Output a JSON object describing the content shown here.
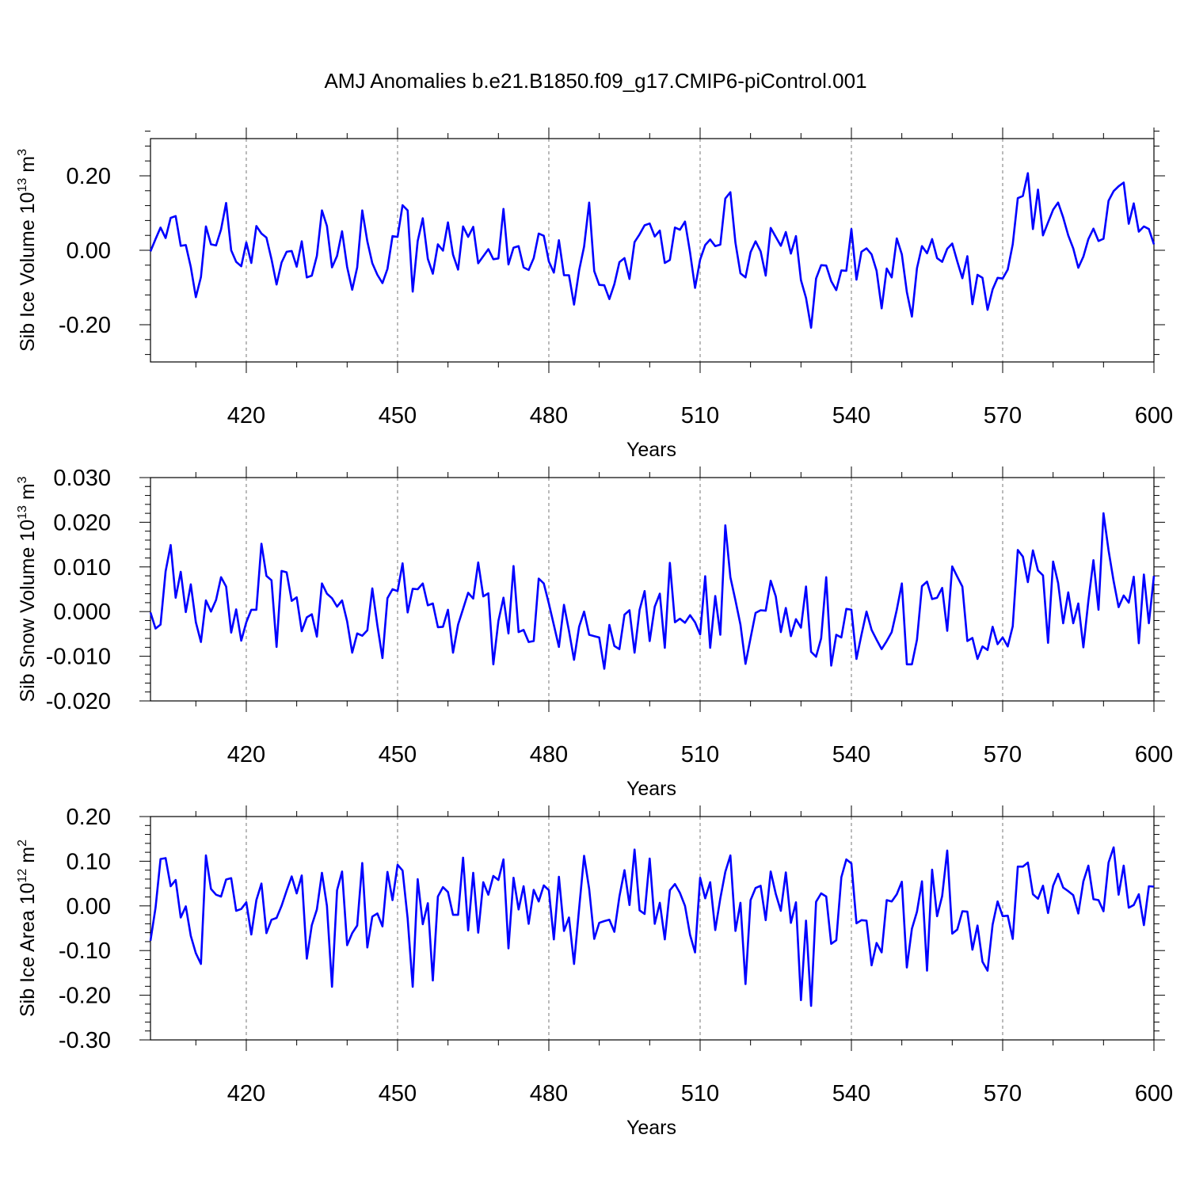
{
  "figure": {
    "title": "AMJ Anomalies b.e21.B1850.f09_g17.CMIP6-piControl.001"
  },
  "colors": {
    "series": "#0000ff",
    "frame": "#000000",
    "grid": "#777777"
  },
  "chart_data": [
    {
      "type": "line",
      "title": "",
      "xlabel": "Years",
      "ylabel": "Sib Ice Volume",
      "ylabel_unit_base": "10",
      "ylabel_unit_exp": "13",
      "ylabel_unit_sym": "m",
      "ylabel_unit_sym_exp": "3",
      "xlim": [
        401,
        600
      ],
      "ylim": [
        -0.3,
        0.3
      ],
      "x_ticks": [
        420,
        450,
        480,
        510,
        540,
        570,
        600
      ],
      "x_tick_labels": [
        "420",
        "450",
        "480",
        "510",
        "540",
        "570",
        "600"
      ],
      "y_ticks": [
        0.2,
        0.0,
        -0.2
      ],
      "y_tick_labels": [
        "0.20",
        "0.00",
        "-0.20"
      ],
      "grid": "vertical dashed at x ticks",
      "series": [
        {
          "x_start": 401,
          "x_step": 1,
          "values": [
            -0.003,
            0.03,
            0.061,
            0.033,
            0.087,
            0.092,
            0.012,
            0.014,
            -0.045,
            -0.126,
            -0.072,
            0.064,
            0.016,
            0.013,
            0.056,
            0.127,
            0.0,
            -0.031,
            -0.043,
            0.021,
            -0.034,
            0.065,
            0.045,
            0.034,
            -0.024,
            -0.092,
            -0.033,
            -0.004,
            -0.002,
            -0.044,
            0.024,
            -0.073,
            -0.068,
            -0.015,
            0.107,
            0.065,
            -0.046,
            -0.015,
            0.051,
            -0.045,
            -0.106,
            -0.046,
            0.107,
            0.024,
            -0.035,
            -0.066,
            -0.088,
            -0.05,
            0.038,
            0.036,
            0.121,
            0.107,
            -0.111,
            0.025,
            0.086,
            -0.023,
            -0.063,
            0.016,
            -0.001,
            0.075,
            -0.012,
            -0.052,
            0.064,
            0.036,
            0.063,
            -0.035,
            -0.016,
            0.003,
            -0.024,
            -0.022,
            0.111,
            -0.038,
            0.007,
            0.011,
            -0.046,
            -0.053,
            -0.021,
            0.045,
            0.039,
            -0.03,
            -0.06,
            0.027,
            -0.067,
            -0.067,
            -0.146,
            -0.054,
            0.01,
            0.128,
            -0.056,
            -0.093,
            -0.094,
            -0.131,
            -0.091,
            -0.032,
            -0.021,
            -0.077,
            0.022,
            0.043,
            0.067,
            0.072,
            0.037,
            0.053,
            -0.034,
            -0.026,
            0.061,
            0.055,
            0.077,
            -0.006,
            -0.101,
            -0.025,
            0.014,
            0.029,
            0.011,
            0.015,
            0.139,
            0.156,
            0.02,
            -0.062,
            -0.073,
            -0.005,
            0.024,
            -0.003,
            -0.068,
            0.06,
            0.036,
            0.012,
            0.049,
            -0.009,
            0.038,
            -0.08,
            -0.128,
            -0.208,
            -0.076,
            -0.04,
            -0.041,
            -0.083,
            -0.107,
            -0.054,
            -0.055,
            0.057,
            -0.079,
            -0.004,
            0.005,
            -0.011,
            -0.055,
            -0.156,
            -0.049,
            -0.073,
            0.032,
            -0.011,
            -0.112,
            -0.178,
            -0.048,
            0.011,
            -0.008,
            0.03,
            -0.021,
            -0.031,
            0.004,
            0.018,
            -0.03,
            -0.075,
            -0.016,
            -0.145,
            -0.066,
            -0.074,
            -0.16,
            -0.105,
            -0.074,
            -0.076,
            -0.052,
            0.016,
            0.14,
            0.146,
            0.207,
            0.057,
            0.163,
            0.04,
            0.075,
            0.109,
            0.128,
            0.088,
            0.04,
            0.005,
            -0.047,
            -0.017,
            0.03,
            0.058,
            0.025,
            0.031,
            0.133,
            0.159,
            0.172,
            0.182,
            0.071,
            0.126,
            0.05,
            0.064,
            0.057,
            0.016
          ]
        }
      ]
    },
    {
      "type": "line",
      "title": "",
      "xlabel": "Years",
      "ylabel": "Sib Snow Volume",
      "ylabel_unit_base": "10",
      "ylabel_unit_exp": "13",
      "ylabel_unit_sym": "m",
      "ylabel_unit_sym_exp": "3",
      "xlim": [
        401,
        600
      ],
      "ylim": [
        -0.02,
        0.03
      ],
      "x_ticks": [
        420,
        450,
        480,
        510,
        540,
        570,
        600
      ],
      "x_tick_labels": [
        "420",
        "450",
        "480",
        "510",
        "540",
        "570",
        "600"
      ],
      "y_ticks": [
        0.03,
        0.02,
        0.01,
        0.0,
        -0.01,
        -0.02
      ],
      "y_tick_labels": [
        "0.030",
        "0.020",
        "0.010",
        "0.000",
        "-0.010",
        "-0.020"
      ],
      "grid": "vertical dashed at x ticks",
      "series": [
        {
          "x_start": 401,
          "x_step": 1,
          "values": [
            -0.0002,
            -0.0038,
            -0.0029,
            0.009,
            0.0149,
            0.0031,
            0.0089,
            -0.0001,
            0.0061,
            -0.0024,
            -0.0068,
            0.0025,
            0.0,
            0.0026,
            0.0077,
            0.0056,
            -0.0047,
            0.0005,
            -0.0065,
            -0.0024,
            0.0004,
            0.0004,
            0.0152,
            0.008,
            0.007,
            -0.0079,
            0.0091,
            0.0088,
            0.0024,
            0.0032,
            -0.0044,
            -0.0013,
            -0.0006,
            -0.0056,
            0.0063,
            0.004,
            0.003,
            0.0011,
            0.0025,
            -0.0022,
            -0.0092,
            -0.0049,
            -0.0054,
            -0.0042,
            0.0052,
            -0.0031,
            -0.0104,
            0.003,
            0.005,
            0.0046,
            0.0108,
            -0.0002,
            0.0051,
            0.005,
            0.0063,
            0.0014,
            0.0018,
            -0.0035,
            -0.0034,
            0.0004,
            -0.0092,
            -0.0029,
            0.0006,
            0.0042,
            0.0029,
            0.011,
            0.0034,
            0.0041,
            -0.0118,
            -0.0021,
            0.0031,
            -0.0049,
            0.0102,
            -0.0046,
            -0.0041,
            -0.0068,
            -0.0066,
            0.0074,
            0.0063,
            0.0018,
            -0.003,
            -0.0079,
            0.0015,
            -0.0043,
            -0.0108,
            -0.0034,
            0.0,
            -0.0052,
            -0.0055,
            -0.0058,
            -0.0128,
            -0.003,
            -0.0077,
            -0.0084,
            -0.0007,
            0.0003,
            -0.0092,
            0.0004,
            0.0046,
            -0.0066,
            0.0011,
            0.004,
            -0.0081,
            0.0109,
            -0.0024,
            -0.0016,
            -0.0025,
            -0.0008,
            -0.0024,
            -0.0051,
            0.0079,
            -0.0081,
            0.0035,
            -0.0052,
            0.0193,
            0.0077,
            0.0025,
            -0.0029,
            -0.0117,
            -0.0059,
            -0.0003,
            0.0003,
            0.0002,
            0.0069,
            0.0034,
            -0.0046,
            0.0008,
            -0.0055,
            -0.0017,
            -0.0036,
            0.0056,
            -0.009,
            -0.0101,
            -0.006,
            0.0077,
            -0.0121,
            -0.0052,
            -0.0058,
            0.0006,
            0.0004,
            -0.0106,
            -0.0052,
            0.0,
            -0.0041,
            -0.0063,
            -0.0084,
            -0.0066,
            -0.0046,
            0.0004,
            0.0063,
            -0.0118,
            -0.0118,
            -0.0063,
            0.0057,
            0.0067,
            0.0028,
            0.0031,
            0.0053,
            -0.0043,
            0.0101,
            0.0078,
            0.0056,
            -0.0066,
            -0.0059,
            -0.0106,
            -0.0078,
            -0.0086,
            -0.0034,
            -0.0073,
            -0.0058,
            -0.0078,
            -0.0033,
            0.0138,
            0.0123,
            0.0066,
            0.0137,
            0.0092,
            0.0081,
            -0.007,
            0.0112,
            0.0064,
            -0.0026,
            0.0043,
            -0.0026,
            0.0018,
            -0.008,
            0.0024,
            0.0115,
            0.0004,
            0.022,
            0.0137,
            0.0068,
            0.001,
            0.0036,
            0.002,
            0.0078,
            -0.0071,
            0.0083,
            -0.0026,
            0.008
          ]
        }
      ]
    },
    {
      "type": "line",
      "title": "",
      "xlabel": "Years",
      "ylabel": "Sib Ice Area",
      "ylabel_unit_base": "10",
      "ylabel_unit_exp": "12",
      "ylabel_unit_sym": "m",
      "ylabel_unit_sym_exp": "2",
      "xlim": [
        401,
        600
      ],
      "ylim": [
        -0.3,
        0.2
      ],
      "x_ticks": [
        420,
        450,
        480,
        510,
        540,
        570,
        600
      ],
      "x_tick_labels": [
        "420",
        "450",
        "480",
        "510",
        "540",
        "570",
        "600"
      ],
      "y_ticks": [
        0.2,
        0.1,
        0.0,
        -0.1,
        -0.2,
        -0.3
      ],
      "y_tick_labels": [
        "0.20",
        "0.10",
        "0.00",
        "-0.10",
        "-0.20",
        "-0.30"
      ],
      "grid": "vertical dashed at x ticks",
      "series": [
        {
          "x_start": 401,
          "x_step": 1,
          "values": [
            -0.078,
            -0.004,
            0.105,
            0.107,
            0.044,
            0.058,
            -0.026,
            -0.001,
            -0.067,
            -0.106,
            -0.13,
            0.113,
            0.038,
            0.025,
            0.021,
            0.059,
            0.062,
            -0.011,
            -0.007,
            0.008,
            -0.064,
            0.013,
            0.05,
            -0.061,
            -0.031,
            -0.027,
            0.0,
            0.034,
            0.066,
            0.028,
            0.068,
            -0.118,
            -0.043,
            -0.008,
            0.074,
            0.0,
            -0.181,
            0.035,
            0.077,
            -0.088,
            -0.061,
            -0.044,
            0.096,
            -0.093,
            -0.024,
            -0.017,
            -0.046,
            0.076,
            0.013,
            0.092,
            0.079,
            -0.028,
            -0.181,
            0.06,
            -0.041,
            0.006,
            -0.167,
            0.021,
            0.042,
            0.031,
            -0.02,
            -0.02,
            0.108,
            -0.055,
            0.074,
            -0.06,
            0.053,
            0.025,
            0.067,
            0.058,
            0.104,
            -0.095,
            0.063,
            -0.008,
            0.044,
            -0.04,
            0.036,
            0.01,
            0.046,
            0.035,
            -0.075,
            0.065,
            -0.056,
            -0.026,
            -0.13,
            -0.006,
            0.112,
            0.038,
            -0.074,
            -0.038,
            -0.034,
            -0.031,
            -0.058,
            0.021,
            0.08,
            0.002,
            0.126,
            -0.01,
            -0.018,
            0.106,
            -0.04,
            0.007,
            -0.075,
            0.035,
            0.049,
            0.029,
            0.0,
            -0.065,
            -0.104,
            0.063,
            0.017,
            0.053,
            -0.054,
            0.017,
            0.076,
            0.113,
            -0.056,
            0.007,
            -0.175,
            0.013,
            0.04,
            0.045,
            -0.032,
            0.077,
            0.027,
            -0.011,
            0.075,
            -0.038,
            0.008,
            -0.211,
            -0.033,
            -0.224,
            0.009,
            0.028,
            0.021,
            -0.085,
            -0.077,
            0.064,
            0.104,
            0.095,
            -0.039,
            -0.032,
            -0.033,
            -0.133,
            -0.083,
            -0.104,
            0.013,
            0.01,
            0.026,
            0.054,
            -0.138,
            -0.051,
            -0.013,
            0.055,
            -0.145,
            0.081,
            -0.023,
            0.022,
            0.124,
            -0.062,
            -0.053,
            -0.012,
            -0.013,
            -0.098,
            -0.044,
            -0.125,
            -0.145,
            -0.042,
            0.01,
            -0.023,
            -0.022,
            -0.074,
            0.088,
            0.088,
            0.097,
            0.026,
            0.016,
            0.045,
            -0.016,
            0.045,
            0.072,
            0.041,
            0.033,
            0.024,
            -0.017,
            0.055,
            0.09,
            0.015,
            0.013,
            -0.012,
            0.097,
            0.131,
            0.025,
            0.09,
            -0.004,
            0.002,
            0.026,
            -0.043,
            0.044,
            0.043
          ]
        }
      ]
    }
  ]
}
